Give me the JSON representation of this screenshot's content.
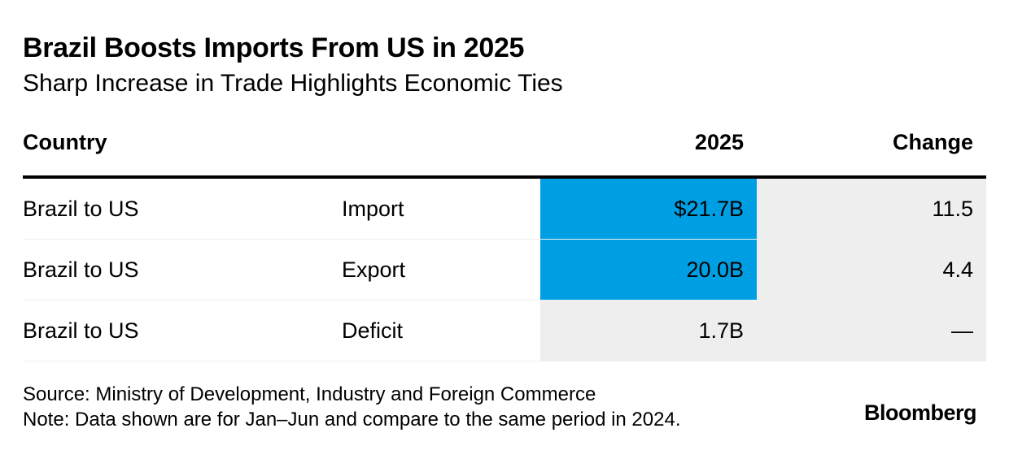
{
  "chart_data": {
    "type": "table",
    "title": "Brazil Boosts Imports From US in 2025",
    "subtitle": "Sharp Increase in Trade Highlights Economic Ties",
    "columns": [
      "Country",
      "",
      "2025",
      "Change"
    ],
    "rows": [
      {
        "country": "Brazil to US",
        "type": "Import",
        "value": "$21.7B",
        "change": "11.5",
        "highlight": true
      },
      {
        "country": "Brazil to US",
        "type": "Export",
        "value": "20.0B",
        "change": "4.4",
        "highlight": true
      },
      {
        "country": "Brazil to US",
        "type": "Deficit",
        "value": "1.7B",
        "change": "—",
        "highlight": false
      }
    ],
    "source": "Source: Ministry of Development, Industry and Foreign Commerce",
    "note": "Note: Data shown are for Jan–Jun and compare to the same period in 2024.",
    "brand": "Bloomberg"
  },
  "colors": {
    "highlight": "#009fe3",
    "neutral": "#eeeeee",
    "text": "#000000"
  }
}
